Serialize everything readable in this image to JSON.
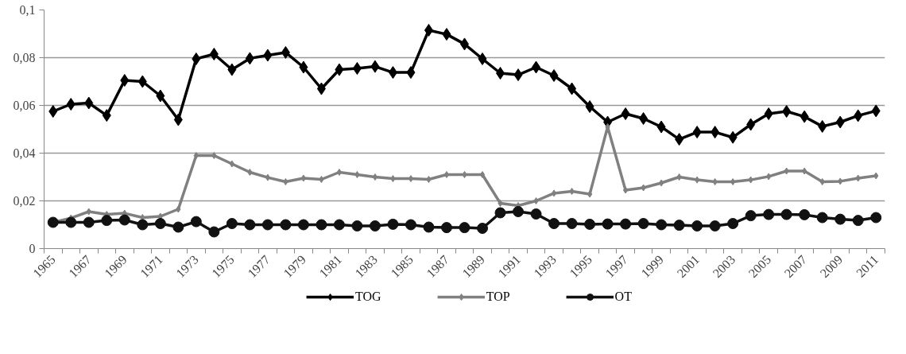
{
  "chart_data": {
    "type": "line",
    "categories": [
      "1965",
      null,
      "1967",
      null,
      "1969",
      null,
      "1971",
      null,
      "1973",
      null,
      "1975",
      null,
      "1977",
      null,
      "1979",
      null,
      "1981",
      null,
      "1983",
      null,
      "1985",
      null,
      "1987",
      null,
      "1989",
      null,
      "1991",
      null,
      "1993",
      null,
      "1995",
      null,
      "1997",
      null,
      "1999",
      null,
      "2001",
      null,
      "2003",
      null,
      "2005",
      null,
      "2007",
      null,
      "2009",
      null,
      "2011"
    ],
    "series": [
      {
        "name": "TOG",
        "color": "#000000",
        "marker": "diamond",
        "values": [
          0.0575,
          0.0605,
          0.061,
          0.0558,
          0.0705,
          0.07,
          0.064,
          0.054,
          0.0795,
          0.0815,
          0.075,
          0.0797,
          0.081,
          0.0822,
          0.076,
          0.067,
          0.075,
          0.0755,
          0.0763,
          0.0738,
          0.0738,
          0.0915,
          0.0898,
          0.0857,
          0.0795,
          0.0735,
          0.0728,
          0.076,
          0.0725,
          0.067,
          0.0595,
          0.053,
          0.0565,
          0.0545,
          0.051,
          0.0458,
          0.0488,
          0.0488,
          0.0466,
          0.052,
          0.0565,
          0.0575,
          0.0553,
          0.0512,
          0.053,
          0.0557,
          0.0577
        ]
      },
      {
        "name": "TOP",
        "color": "#808080",
        "marker": "diamond",
        "values": [
          0.011,
          0.0128,
          0.0155,
          0.0143,
          0.0148,
          0.013,
          0.0135,
          0.0165,
          0.039,
          0.039,
          0.0355,
          0.032,
          0.0298,
          0.028,
          0.0295,
          0.029,
          0.032,
          0.031,
          0.03,
          0.0293,
          0.0293,
          0.029,
          0.031,
          0.031,
          0.031,
          0.019,
          0.018,
          0.02,
          0.0232,
          0.024,
          0.0228,
          0.051,
          0.0245,
          0.0255,
          0.0275,
          0.03,
          0.0288,
          0.028,
          0.028,
          0.0288,
          0.0302,
          0.0325,
          0.0325,
          0.028,
          0.0282,
          0.0295,
          0.0305
        ]
      },
      {
        "name": "OT",
        "color": "#111111",
        "marker": "circle",
        "values": [
          0.011,
          0.011,
          0.011,
          0.0118,
          0.012,
          0.01,
          0.0105,
          0.009,
          0.0113,
          0.007,
          0.0105,
          0.01,
          0.01,
          0.01,
          0.01,
          0.01,
          0.01,
          0.0095,
          0.0095,
          0.0102,
          0.01,
          0.009,
          0.0088,
          0.0088,
          0.0085,
          0.015,
          0.0155,
          0.0145,
          0.0105,
          0.0105,
          0.0102,
          0.0103,
          0.0103,
          0.0105,
          0.01,
          0.0098,
          0.0095,
          0.0095,
          0.0105,
          0.0138,
          0.0143,
          0.0143,
          0.0142,
          0.013,
          0.0123,
          0.0118,
          0.013
        ]
      }
    ],
    "ylim": [
      0,
      0.1
    ],
    "yticks": [
      0,
      {
        "value": 0.02,
        "label": "0,02"
      },
      {
        "value": 0.04,
        "label": "0,04"
      },
      {
        "value": 0.06,
        "label": "0,06"
      },
      {
        "value": 0.08,
        "label": "0,08"
      },
      {
        "value": 0.1,
        "label": "0,1"
      }
    ],
    "grid": "y",
    "legend": "bottom",
    "line_style": "solid"
  }
}
